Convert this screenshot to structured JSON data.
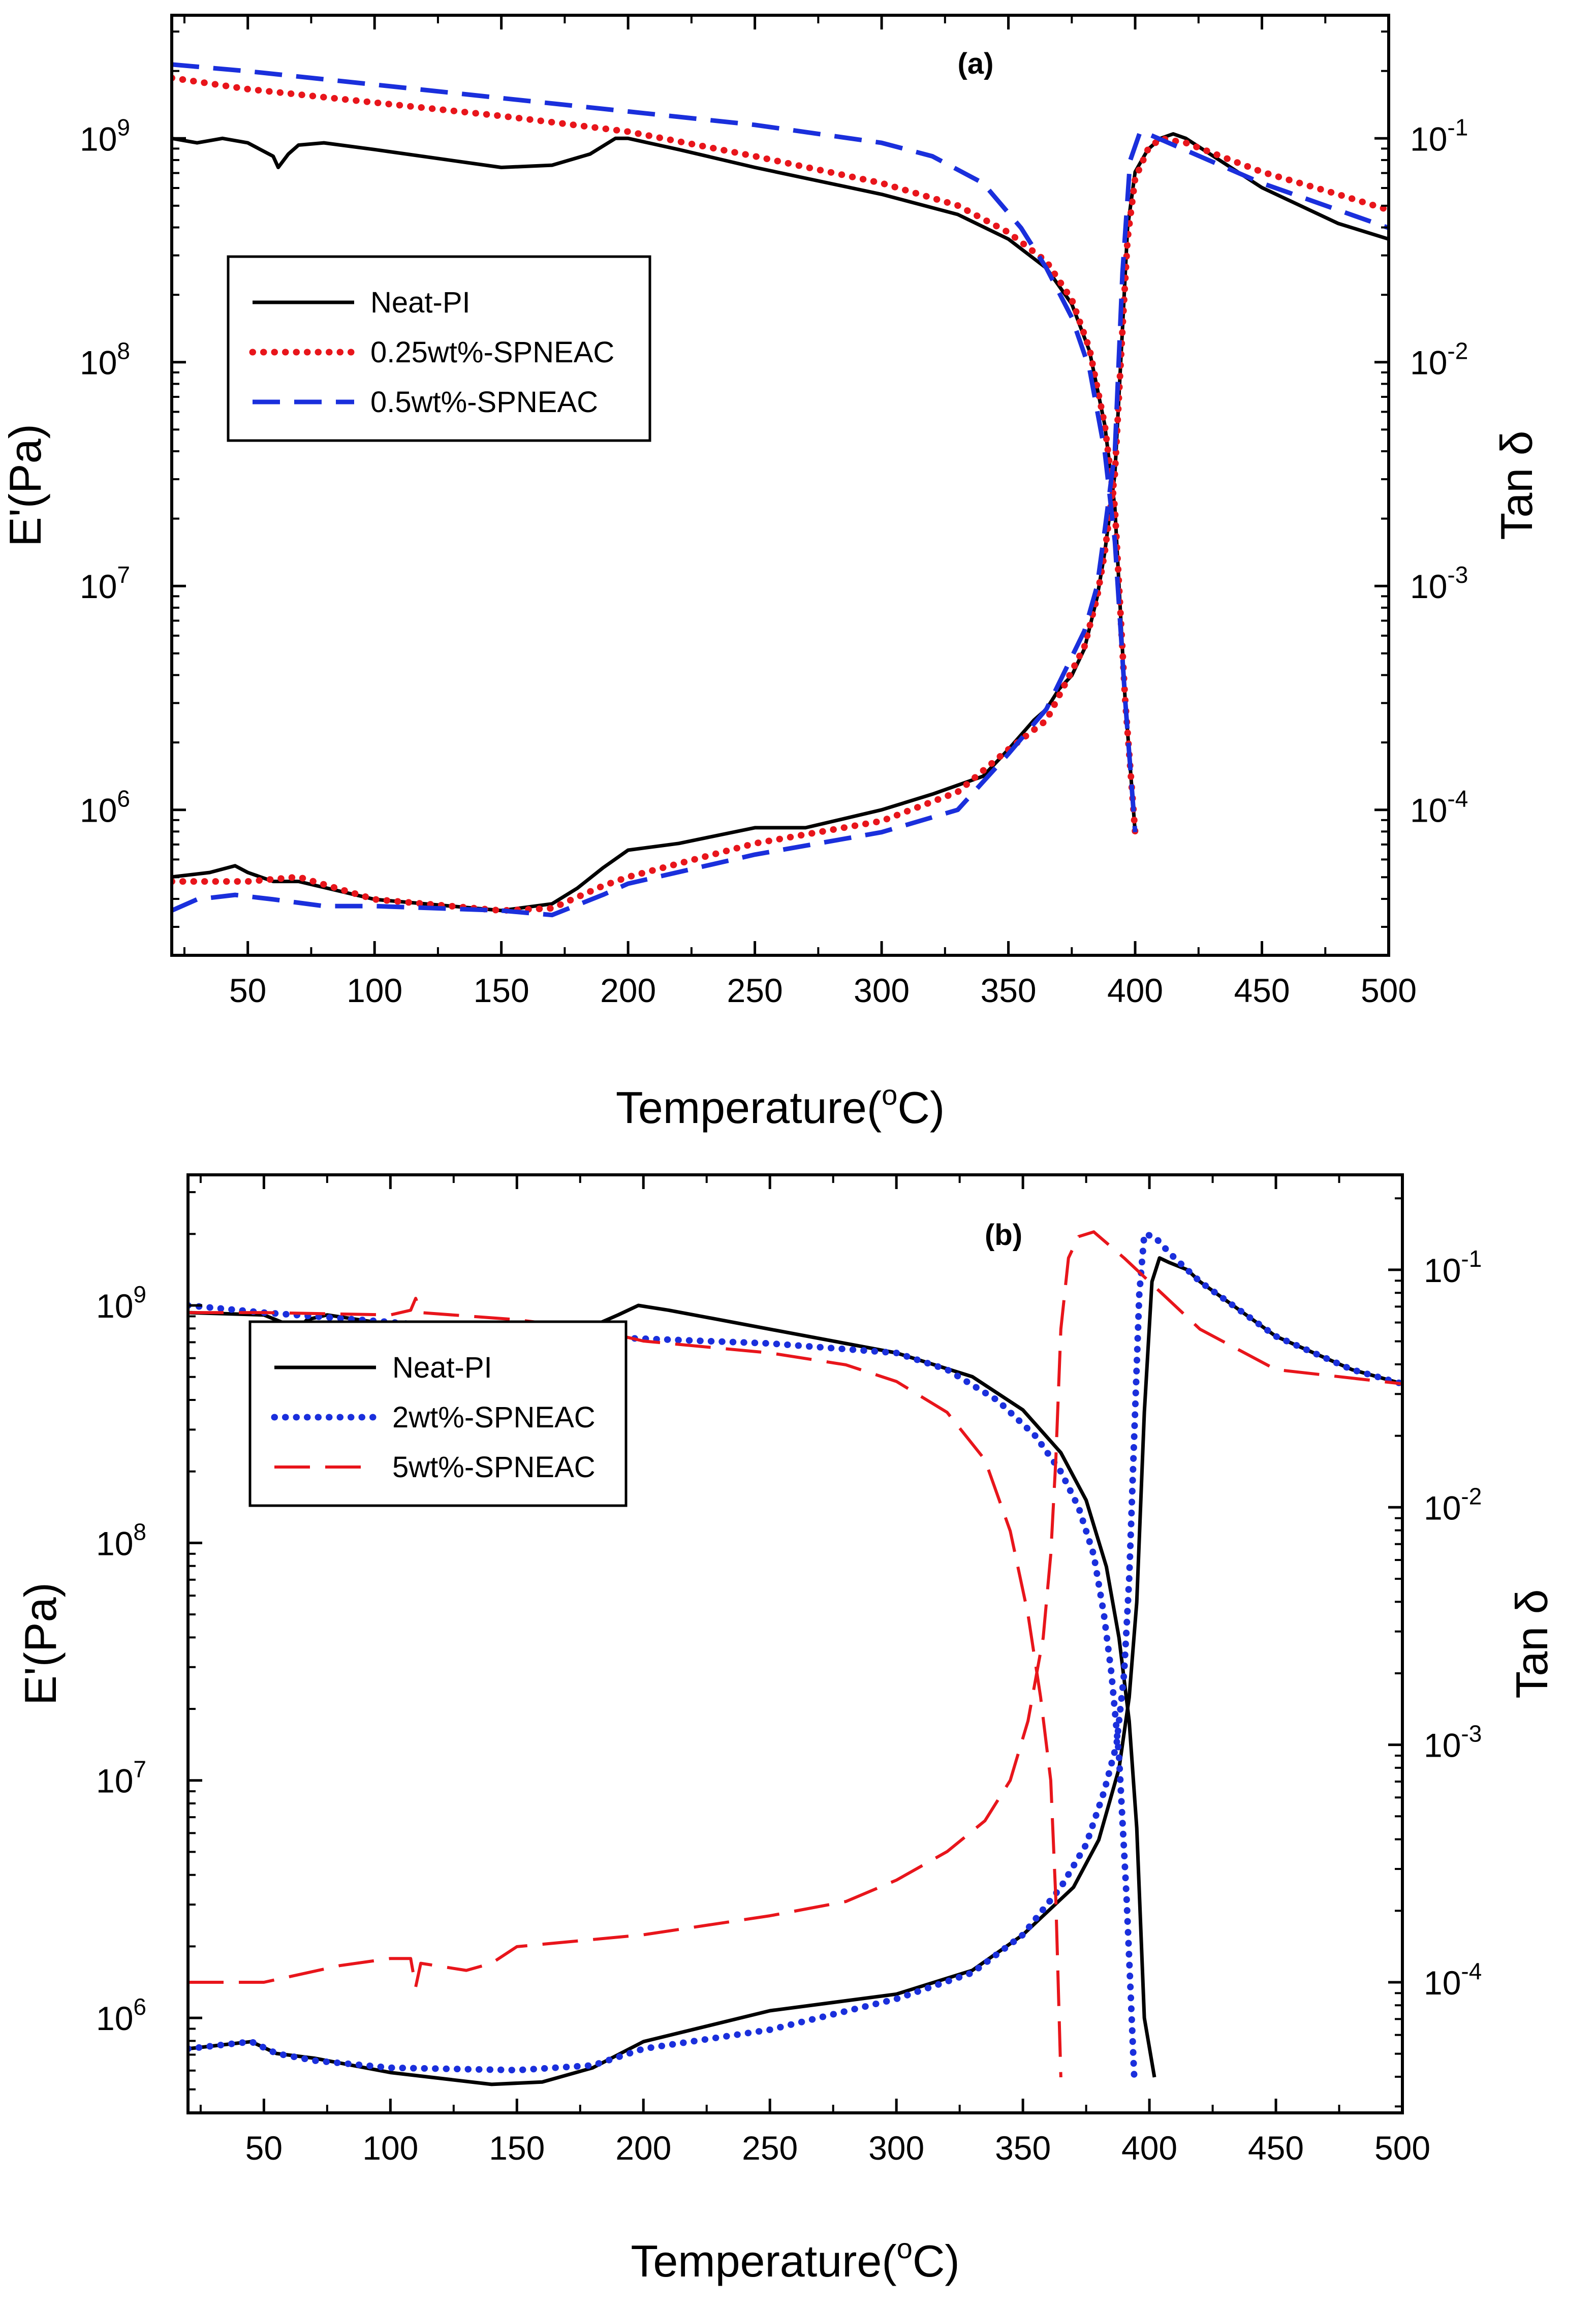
{
  "chart_data": [
    {
      "type": "line",
      "panel_label": "(a)",
      "xlabel": "Temperature(°C)",
      "xlabel_main": "Temperature(",
      "xlabel_sup": "o",
      "xlabel_tail": "C)",
      "ylabel": "E'(Pa)",
      "ylabel_right": "Tan δ",
      "xlim": [
        20,
        500
      ],
      "ylim_log10": [
        5.35,
        9.55
      ],
      "y2lim_log10": [
        -4.65,
        -0.45
      ],
      "x_ticks": [
        50,
        100,
        150,
        200,
        250,
        300,
        350,
        400,
        450,
        500
      ],
      "y_ticks": [
        {
          "exp": 6,
          "base": "10",
          "sup": "6"
        },
        {
          "exp": 7,
          "base": "10",
          "sup": "7"
        },
        {
          "exp": 8,
          "base": "10",
          "sup": "8"
        },
        {
          "exp": 9,
          "base": "10",
          "sup": "9"
        }
      ],
      "y2_ticks": [
        {
          "exp": -4,
          "base": "10",
          "sup": "-4"
        },
        {
          "exp": -3,
          "base": "10",
          "sup": "-3"
        },
        {
          "exp": -2,
          "base": "10",
          "sup": "-2"
        },
        {
          "exp": -1,
          "base": "10",
          "sup": "-1"
        }
      ],
      "legend": {
        "position": "upper-left"
      },
      "series": [
        {
          "name": "Neat-PI",
          "color": "#000000",
          "dash": "solid",
          "storage_modulus": {
            "x": [
              20,
              30,
              40,
              50,
              55,
              60,
              62,
              66,
              70,
              80,
              100,
              150,
              170,
              185,
              195,
              200,
              220,
              250,
              300,
              330,
              350,
              365,
              375,
              382,
              388,
              392,
              396,
              400
            ],
            "log10_y": [
              9.0,
              8.98,
              9.0,
              8.98,
              8.95,
              8.92,
              8.87,
              8.93,
              8.97,
              8.98,
              8.95,
              8.87,
              8.88,
              8.93,
              9.0,
              9.0,
              8.95,
              8.87,
              8.75,
              8.66,
              8.55,
              8.42,
              8.26,
              8.05,
              7.72,
              7.35,
              6.5,
              5.9
            ]
          },
          "tan_delta": {
            "x": [
              20,
              35,
              45,
              50,
              60,
              70,
              100,
              150,
              170,
              180,
              190,
              200,
              220,
              250,
              270,
              300,
              320,
              340,
              350,
              360,
              365,
              370,
              375,
              380,
              385,
              388,
              392,
              395,
              397,
              400,
              405,
              410,
              415,
              420,
              450,
              480,
              500
            ],
            "log10_y": [
              -4.3,
              -4.28,
              -4.25,
              -4.28,
              -4.32,
              -4.32,
              -4.4,
              -4.45,
              -4.42,
              -4.35,
              -4.26,
              -4.18,
              -4.15,
              -4.08,
              -4.08,
              -4.0,
              -3.93,
              -3.85,
              -3.73,
              -3.6,
              -3.55,
              -3.46,
              -3.4,
              -3.28,
              -3.05,
              -2.85,
              -2.5,
              -1.85,
              -1.4,
              -1.15,
              -1.05,
              -1.0,
              -0.98,
              -1.0,
              -1.22,
              -1.38,
              -1.45
            ]
          }
        },
        {
          "name": "0.25wt%-SPNEAC",
          "color": "#e8151b",
          "dash": "dotted",
          "storage_modulus": {
            "x": [
              20,
              50,
              100,
              150,
              200,
              250,
              300,
              330,
              350,
              365,
              375,
              382,
              388,
              392,
              396,
              400
            ],
            "log10_y": [
              9.27,
              9.22,
              9.16,
              9.1,
              9.03,
              8.92,
              8.8,
              8.7,
              8.58,
              8.45,
              8.28,
              8.06,
              7.72,
              7.35,
              6.5,
              5.9
            ]
          },
          "tan_delta": {
            "x": [
              20,
              50,
              70,
              100,
              150,
              170,
              190,
              200,
              250,
              300,
              330,
              350,
              365,
              380,
              385,
              388,
              392,
              395,
              397,
              400,
              405,
              410,
              420,
              450,
              480,
              500
            ],
            "log10_y": [
              -4.32,
              -4.32,
              -4.3,
              -4.4,
              -4.45,
              -4.44,
              -4.34,
              -4.3,
              -4.15,
              -4.05,
              -3.92,
              -3.73,
              -3.6,
              -3.27,
              -3.05,
              -2.85,
              -2.5,
              -1.85,
              -1.45,
              -1.18,
              -1.05,
              -1.0,
              -1.02,
              -1.15,
              -1.25,
              -1.32
            ]
          }
        },
        {
          "name": "0.5wt%-SPNEAC",
          "color": "#1a2fdc",
          "dash": "dashed",
          "storage_modulus": {
            "x": [
              20,
              50,
              100,
              150,
              200,
              250,
              300,
              320,
              340,
              355,
              365,
              375,
              382,
              388,
              392,
              396,
              400
            ],
            "log10_y": [
              9.33,
              9.3,
              9.24,
              9.18,
              9.12,
              9.06,
              8.98,
              8.92,
              8.8,
              8.6,
              8.42,
              8.2,
              7.97,
              7.6,
              7.2,
              6.5,
              5.9
            ]
          },
          "tan_delta": {
            "x": [
              20,
              30,
              45,
              60,
              80,
              100,
              150,
              170,
              190,
              200,
              250,
              300,
              330,
              350,
              365,
              380,
              385,
              388,
              392,
              395,
              398,
              402,
              405,
              450,
              500
            ],
            "log10_y": [
              -4.45,
              -4.4,
              -4.38,
              -4.4,
              -4.43,
              -4.43,
              -4.45,
              -4.47,
              -4.38,
              -4.33,
              -4.2,
              -4.1,
              -4.0,
              -3.75,
              -3.55,
              -3.2,
              -3.0,
              -2.75,
              -2.4,
              -1.6,
              -1.1,
              -0.97,
              -0.98,
              -1.2,
              -1.4
            ]
          }
        }
      ]
    },
    {
      "type": "line",
      "panel_label": "(b)",
      "xlabel": "Temperature(°C)",
      "xlabel_main": "Temperature(",
      "xlabel_sup": "o",
      "xlabel_tail": "C)",
      "ylabel": "E'(Pa)",
      "ylabel_right": "Tan δ",
      "xlim": [
        20,
        500
      ],
      "ylim_log10": [
        5.6,
        9.55
      ],
      "y2lim_log10": [
        -4.55,
        -0.6
      ],
      "x_ticks": [
        50,
        100,
        150,
        200,
        250,
        300,
        350,
        400,
        450,
        500
      ],
      "y_ticks": [
        {
          "exp": 6,
          "base": "10",
          "sup": "6"
        },
        {
          "exp": 7,
          "base": "10",
          "sup": "7"
        },
        {
          "exp": 8,
          "base": "10",
          "sup": "8"
        },
        {
          "exp": 9,
          "base": "10",
          "sup": "9"
        }
      ],
      "y2_ticks": [
        {
          "exp": -4,
          "base": "10",
          "sup": "-4"
        },
        {
          "exp": -3,
          "base": "10",
          "sup": "-3"
        },
        {
          "exp": -2,
          "base": "10",
          "sup": "-2"
        },
        {
          "exp": -1,
          "base": "10",
          "sup": "-1"
        }
      ],
      "legend": {
        "position": "upper-left"
      },
      "series": [
        {
          "name": "Neat-PI",
          "color": "#000000",
          "dash": "solid",
          "storage_modulus": {
            "x": [
              20,
              50,
              57,
              62,
              67,
              75,
              100,
              150,
              175,
              190,
              198,
              210,
              250,
              300,
              330,
              350,
              365,
              375,
              383,
              388,
              392,
              395,
              398,
              402
            ],
            "log10_y": [
              8.97,
              8.96,
              8.93,
              8.88,
              8.94,
              8.96,
              8.92,
              8.88,
              8.89,
              8.96,
              9.0,
              8.98,
              8.9,
              8.8,
              8.7,
              8.56,
              8.38,
              8.18,
              7.9,
              7.6,
              7.25,
              6.8,
              6.0,
              5.75
            ]
          },
          "tan_delta": {
            "x": [
              20,
              45,
              55,
              70,
              100,
              140,
              160,
              180,
              200,
              250,
              300,
              330,
              350,
              370,
              380,
              388,
              392,
              395,
              398,
              401,
              404,
              408,
              415,
              420,
              450,
              480,
              500
            ],
            "log10_y": [
              -4.28,
              -4.25,
              -4.3,
              -4.32,
              -4.38,
              -4.43,
              -4.42,
              -4.36,
              -4.25,
              -4.12,
              -4.05,
              -3.95,
              -3.8,
              -3.6,
              -3.4,
              -3.1,
              -2.8,
              -2.4,
              -1.6,
              -1.05,
              -0.95,
              -0.97,
              -1.0,
              -1.05,
              -1.28,
              -1.42,
              -1.48
            ]
          }
        },
        {
          "name": "2wt%-SPNEAC",
          "color": "#1a2fdc",
          "dash": "dotted",
          "storage_modulus": {
            "x": [
              20,
              50,
              100,
              150,
              200,
              250,
              300,
              320,
              340,
              355,
              365,
              372,
              378,
              382,
              385,
              388,
              391,
              394
            ],
            "log10_y": [
              9.0,
              8.97,
              8.93,
              8.88,
              8.86,
              8.84,
              8.8,
              8.73,
              8.6,
              8.45,
              8.3,
              8.15,
              7.95,
              7.7,
              7.45,
              7.1,
              6.5,
              5.75
            ]
          },
          "tan_delta": {
            "x": [
              20,
              45,
              55,
              70,
              100,
              150,
              180,
              200,
              250,
              300,
              330,
              350,
              365,
              375,
              382,
              387,
              390,
              392,
              394,
              396,
              398,
              402,
              408,
              420,
              450,
              480,
              500
            ],
            "log10_y": [
              -4.28,
              -4.25,
              -4.3,
              -4.33,
              -4.36,
              -4.37,
              -4.35,
              -4.28,
              -4.2,
              -4.07,
              -3.96,
              -3.8,
              -3.6,
              -3.42,
              -3.2,
              -3.0,
              -2.7,
              -2.3,
              -1.7,
              -1.1,
              -0.85,
              -0.86,
              -0.93,
              -1.05,
              -1.28,
              -1.42,
              -1.48
            ]
          }
        },
        {
          "name": "5wt%-SPNEAC",
          "color": "#e8151b",
          "dash": "longdash",
          "storage_modulus": {
            "x": [
              20,
              50,
              100,
              108,
              110,
              112,
              150,
              180,
              200,
              250,
              280,
              300,
              320,
              335,
              345,
              352,
              357,
              361,
              363,
              365
            ],
            "log10_y": [
              8.97,
              8.97,
              8.96,
              8.98,
              9.03,
              8.97,
              8.94,
              8.9,
              8.85,
              8.8,
              8.75,
              8.68,
              8.55,
              8.35,
              8.05,
              7.7,
              7.35,
              7.0,
              6.5,
              5.75
            ]
          },
          "tan_delta": {
            "x": [
              20,
              50,
              80,
              100,
              108,
              110,
              112,
              130,
              140,
              150,
              200,
              250,
              280,
              300,
              320,
              335,
              345,
              352,
              358,
              361,
              363,
              365,
              368,
              372,
              378,
              390,
              420,
              450,
              500
            ],
            "log10_y": [
              -4.0,
              -4.0,
              -3.93,
              -3.9,
              -3.9,
              -4.02,
              -3.92,
              -3.95,
              -3.92,
              -3.85,
              -3.8,
              -3.72,
              -3.66,
              -3.57,
              -3.45,
              -3.32,
              -3.15,
              -2.9,
              -2.55,
              -2.2,
              -1.8,
              -1.25,
              -0.95,
              -0.86,
              -0.84,
              -0.95,
              -1.25,
              -1.42,
              -1.48
            ]
          }
        }
      ]
    }
  ]
}
